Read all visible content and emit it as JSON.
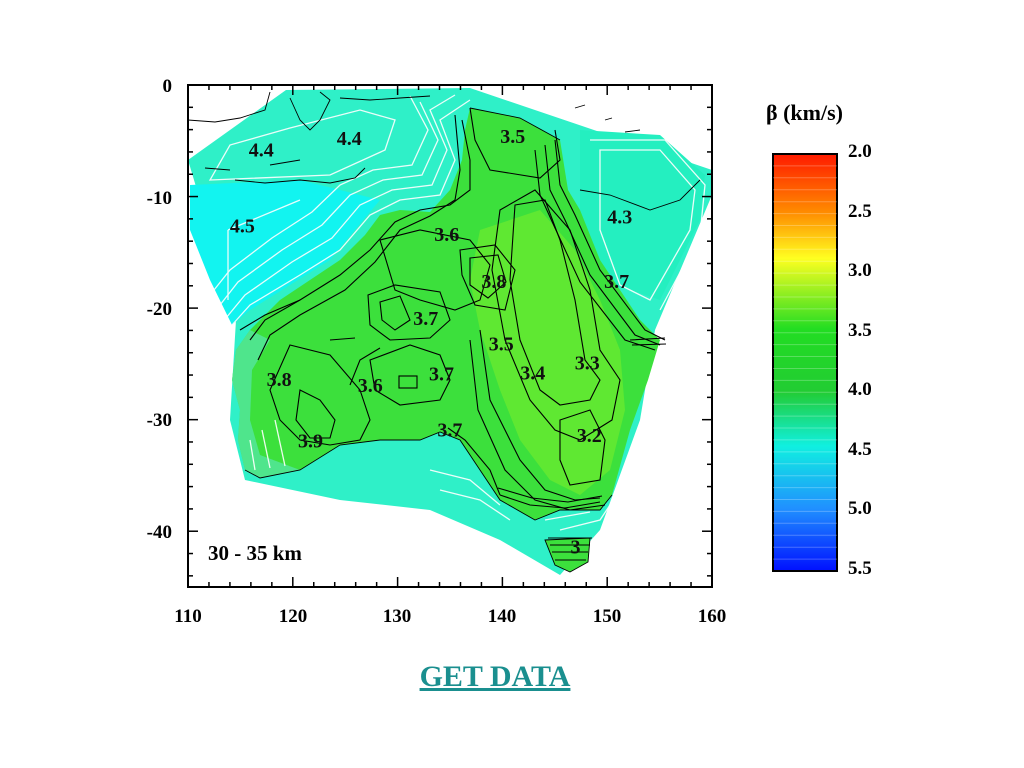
{
  "map": {
    "depth_range": "30 - 35 km",
    "legend": {
      "title": "β (km/s)",
      "ticks": [
        "2.0",
        "2.5",
        "3.0",
        "3.5",
        "4.0",
        "4.5",
        "5.0",
        "5.5"
      ],
      "colors": {
        "top": "#ff0000",
        "mid": "#22cc22",
        "bottom": "#0000ff"
      }
    },
    "axes": {
      "x_ticks": [
        "110",
        "120",
        "130",
        "140",
        "150",
        "160"
      ],
      "y_ticks": [
        "0",
        "-10",
        "-20",
        "-30",
        "-40"
      ]
    },
    "contour_labels": [
      {
        "text": "4.4",
        "lon": 115.8,
        "lat": -6.4
      },
      {
        "text": "4.4",
        "lon": 124.2,
        "lat": -5.4
      },
      {
        "text": "4.5",
        "lon": 114.0,
        "lat": -13.2
      },
      {
        "text": "3.5",
        "lon": 139.8,
        "lat": -5.2
      },
      {
        "text": "4.3",
        "lon": 150.0,
        "lat": -12.4
      },
      {
        "text": "3.6",
        "lon": 133.5,
        "lat": -14.0
      },
      {
        "text": "3.8",
        "lon": 138.0,
        "lat": -18.2
      },
      {
        "text": "3.7",
        "lon": 149.7,
        "lat": -18.2
      },
      {
        "text": "3.7",
        "lon": 131.5,
        "lat": -21.5
      },
      {
        "text": "3.5",
        "lon": 138.7,
        "lat": -23.8
      },
      {
        "text": "3.4",
        "lon": 141.7,
        "lat": -26.4
      },
      {
        "text": "3.3",
        "lon": 146.9,
        "lat": -25.5
      },
      {
        "text": "3.8",
        "lon": 117.5,
        "lat": -27.0
      },
      {
        "text": "3.6",
        "lon": 126.2,
        "lat": -27.5
      },
      {
        "text": "3.7",
        "lon": 133.0,
        "lat": -26.5
      },
      {
        "text": "3.7",
        "lon": 133.8,
        "lat": -31.5
      },
      {
        "text": "3.9",
        "lon": 120.5,
        "lat": -32.5
      },
      {
        "text": "3.2",
        "lon": 147.1,
        "lat": -32.0
      },
      {
        "text": "3",
        "lon": 146.5,
        "lat": -42.0
      }
    ]
  },
  "link": {
    "label": "GET DATA"
  }
}
